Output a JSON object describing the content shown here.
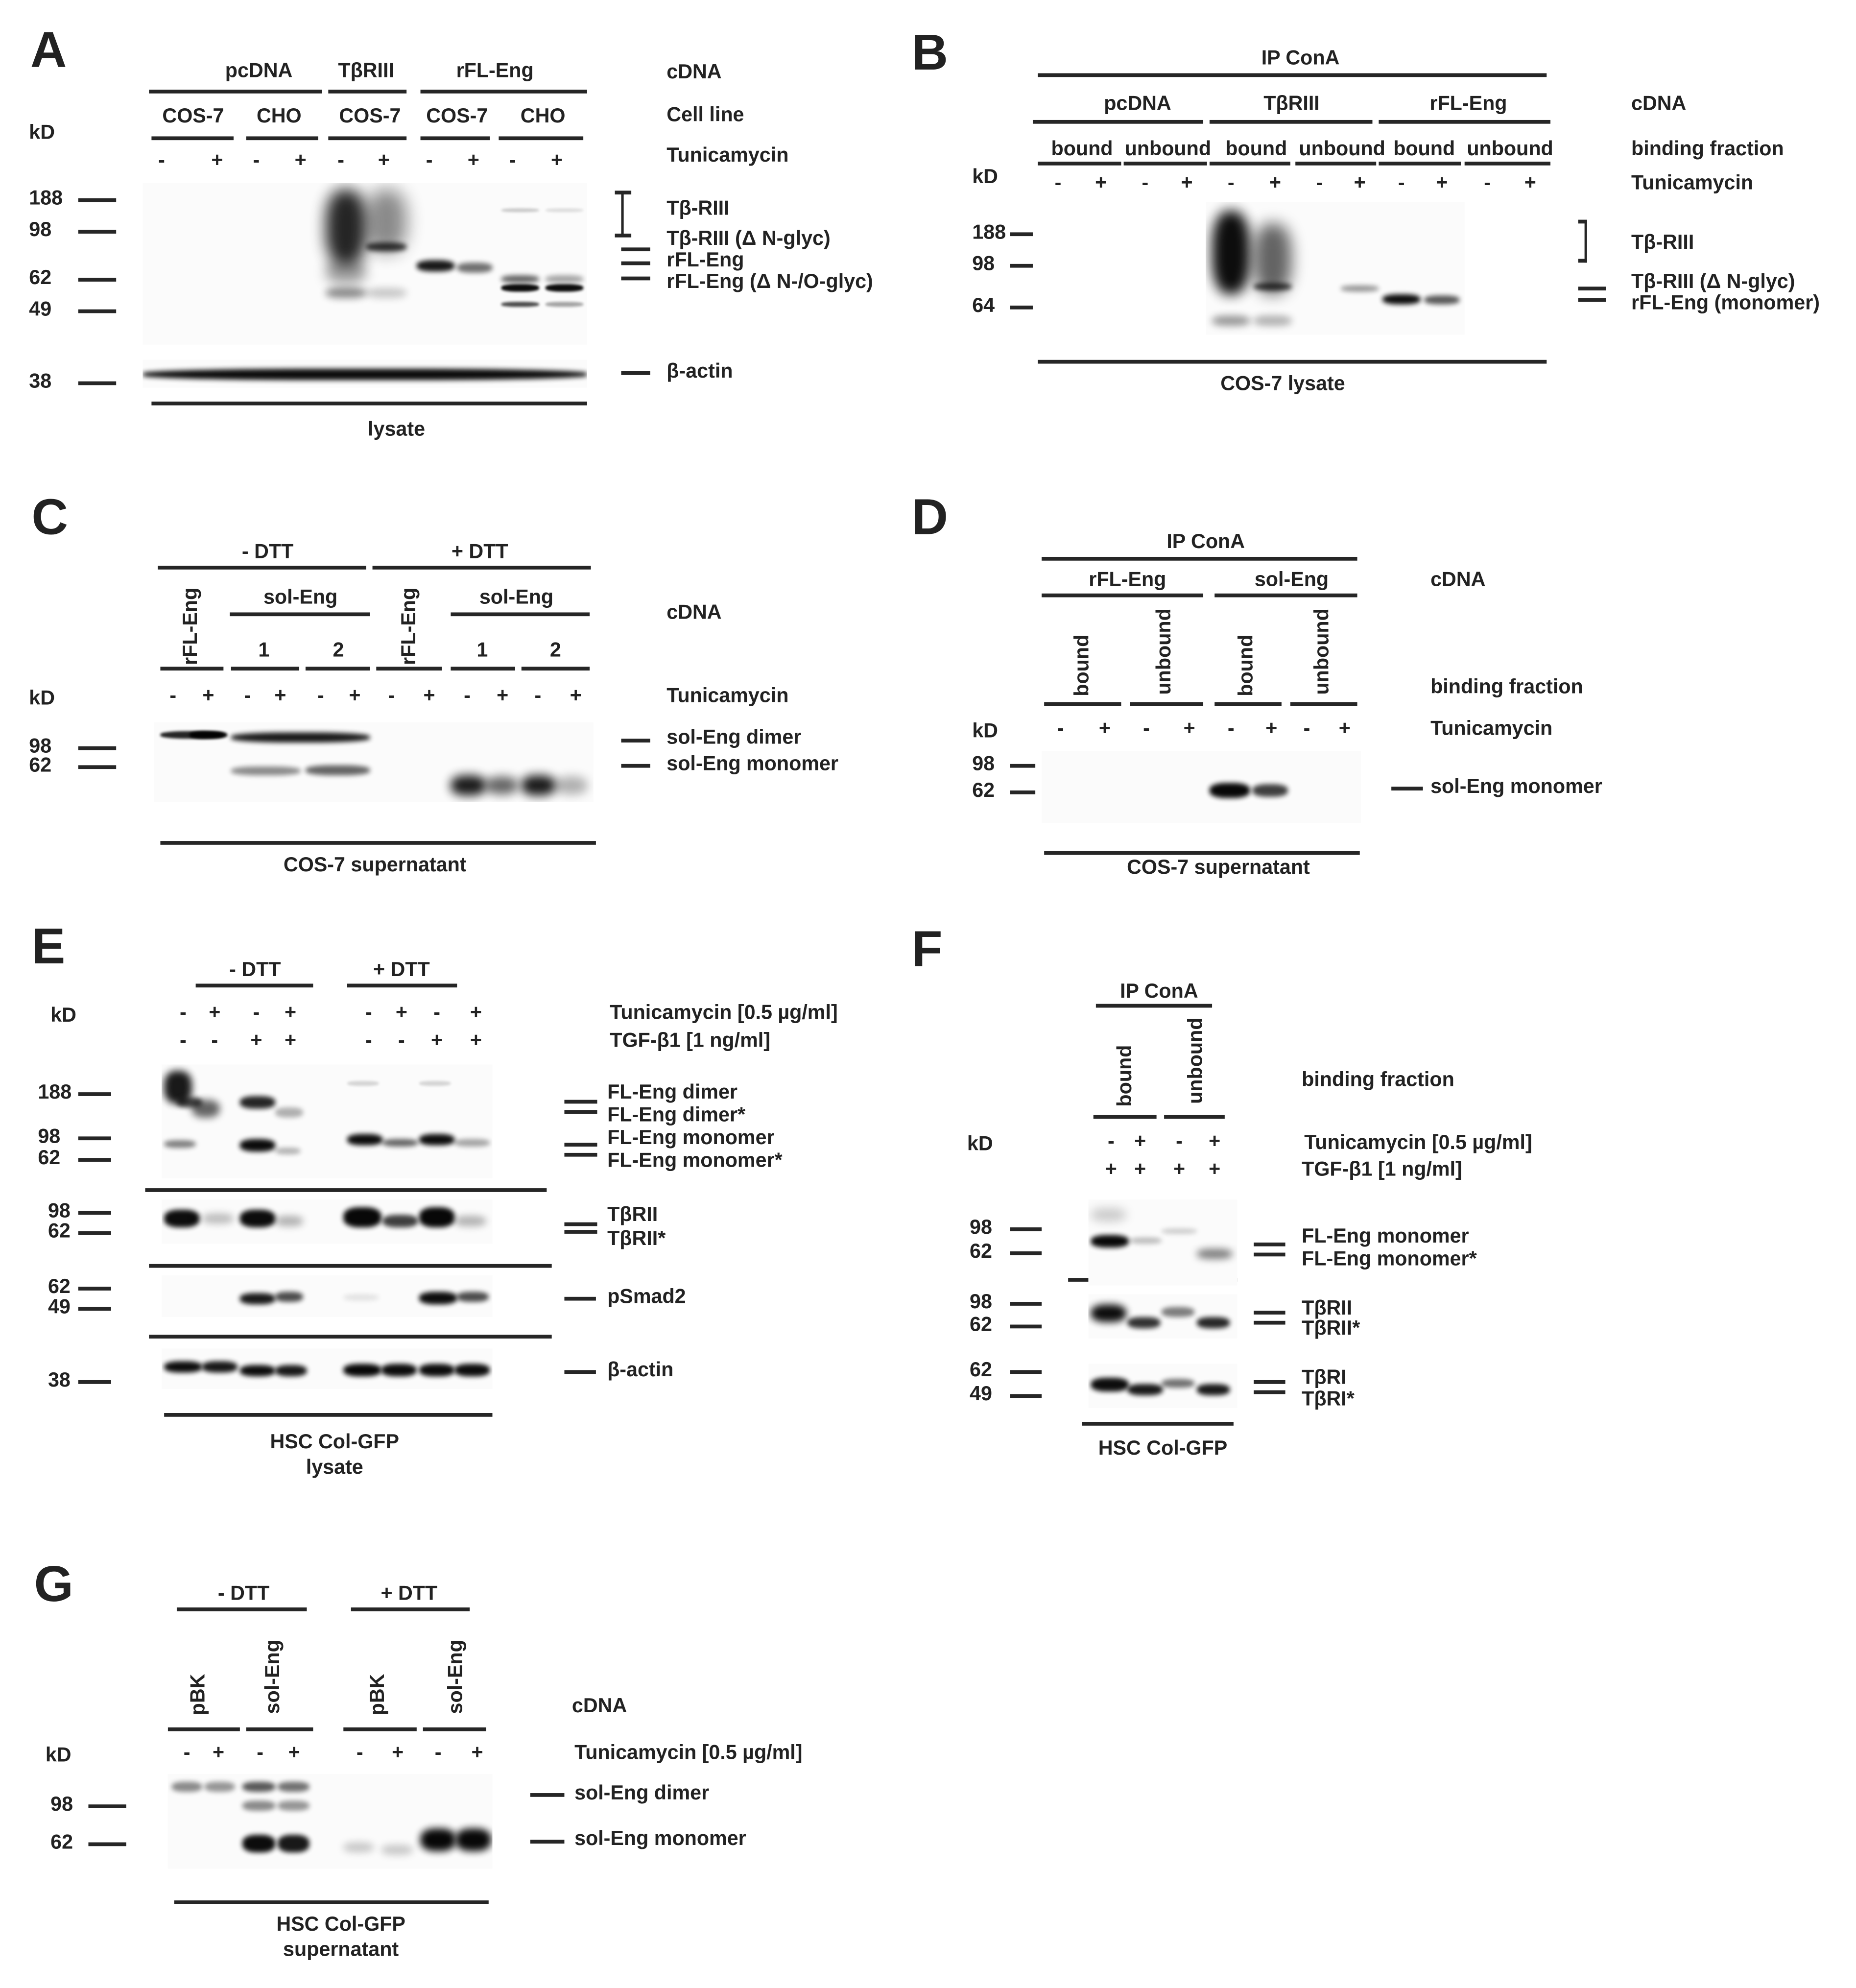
{
  "panels": {
    "A": {
      "letter": "A",
      "cdna": [
        "pcDNA",
        "TβRIII",
        "rFL-Eng"
      ],
      "cell_lines": [
        "COS-7",
        "CHO",
        "COS-7",
        "COS-7",
        "CHO"
      ],
      "tunicamycin": [
        "-",
        "+",
        "-",
        "+",
        "-",
        "+",
        "-",
        "+",
        "-",
        "+"
      ],
      "row_labels": {
        "cdna": "cDNA",
        "cell_line": "Cell line",
        "tunicamycin": "Tunicamycin"
      },
      "kd": "kD",
      "markers": [
        "188",
        "98",
        "62",
        "49",
        "38"
      ],
      "band_labels": [
        "Tβ-RIII",
        "Tβ-RIII (Δ N-glyc)",
        "rFL-Eng",
        "rFL-Eng (Δ N-/O-glyc)",
        "β-actin"
      ],
      "footer": "lysate"
    },
    "B": {
      "letter": "B",
      "ip": "IP ConA",
      "cdna": [
        "pcDNA",
        "TβRIII",
        "rFL-Eng"
      ],
      "fractions": [
        "bound",
        "unbound",
        "bound",
        "unbound",
        "bound",
        "unbound"
      ],
      "tunicamycin": [
        "-",
        "+",
        "-",
        "+",
        "-",
        "+",
        "-",
        "+",
        "-",
        "+",
        "-",
        "+"
      ],
      "row_labels": {
        "cdna": "cDNA",
        "binding": "binding fraction",
        "tunicamycin": "Tunicamycin"
      },
      "kd": "kD",
      "markers": [
        "188",
        "98",
        "64"
      ],
      "band_labels": [
        "Tβ-RIII",
        "Tβ-RIII (Δ N-glyc)",
        "rFL-Eng (monomer)"
      ],
      "footer": "COS-7 lysate"
    },
    "C": {
      "letter": "C",
      "dtt": [
        "- DTT",
        "+ DTT"
      ],
      "cdna": [
        "rFL-Eng",
        "sol-Eng",
        "rFL-Eng",
        "sol-Eng"
      ],
      "clones": [
        "1",
        "2",
        "1",
        "2"
      ],
      "tunicamycin": [
        "-",
        "+",
        "-",
        "+",
        "-",
        "+",
        "-",
        "+",
        "-",
        "+",
        "-",
        "+"
      ],
      "row_labels": {
        "cdna": "cDNA",
        "tunicamycin": "Tunicamycin"
      },
      "kd": "kD",
      "markers": [
        "98",
        "62"
      ],
      "band_labels": [
        "sol-Eng dimer",
        "sol-Eng monomer"
      ],
      "footer": "COS-7 supernatant"
    },
    "D": {
      "letter": "D",
      "ip": "IP ConA",
      "cdna": [
        "rFL-Eng",
        "sol-Eng"
      ],
      "fractions": [
        "bound",
        "unbound",
        "bound",
        "unbound"
      ],
      "tunicamycin": [
        "-",
        "+",
        "-",
        "+",
        "-",
        "+",
        "-",
        "+"
      ],
      "row_labels": {
        "cdna": "cDNA",
        "binding": "binding fraction",
        "tunicamycin": "Tunicamycin"
      },
      "kd": "kD",
      "markers": [
        "98",
        "62"
      ],
      "band_labels": [
        "sol-Eng monomer"
      ],
      "footer": "COS-7 supernatant"
    },
    "E": {
      "letter": "E",
      "dtt": [
        "- DTT",
        "+ DTT"
      ],
      "tunicamycin": [
        "-",
        "+",
        "-",
        "+",
        "-",
        "+",
        "-",
        "+"
      ],
      "tgf": [
        "-",
        "-",
        "+",
        "+",
        "-",
        "-",
        "+",
        "+"
      ],
      "row_labels": {
        "tunicamycin": "Tunicamycin [0.5 µg/ml]",
        "tgf": "TGF-β1 [1 ng/ml]"
      },
      "kd": "kD",
      "markers_eng": [
        "188",
        "98",
        "62"
      ],
      "markers_tbrii": [
        "98",
        "62"
      ],
      "markers_psmad": [
        "62",
        "49"
      ],
      "markers_actin": [
        "38"
      ],
      "band_labels": [
        "FL-Eng dimer",
        "FL-Eng dimer*",
        "FL-Eng monomer",
        "FL-Eng monomer*",
        "TβRII",
        "TβRII*",
        "pSmad2",
        "β-actin"
      ],
      "footer": [
        "HSC Col-GFP",
        "lysate"
      ]
    },
    "F": {
      "letter": "F",
      "ip": "IP ConA",
      "fractions": [
        "bound",
        "unbound"
      ],
      "tunicamycin": [
        "-",
        "+",
        "-",
        "+"
      ],
      "tgf": [
        "+",
        "+",
        "+",
        "+"
      ],
      "row_labels": {
        "binding": "binding fraction",
        "tunicamycin": "Tunicamycin [0.5 µg/ml]",
        "tgf": "TGF-β1 [1 ng/ml]"
      },
      "kd": "kD",
      "markers_eng": [
        "98",
        "62"
      ],
      "markers_tbrii": [
        "98",
        "62"
      ],
      "markers_tbri": [
        "62",
        "49"
      ],
      "band_labels": [
        "FL-Eng monomer",
        "FL-Eng monomer*",
        "TβRII",
        "TβRII*",
        "TβRI",
        "TβRI*"
      ],
      "footer": "HSC Col-GFP"
    },
    "G": {
      "letter": "G",
      "dtt": [
        "- DTT",
        "+ DTT"
      ],
      "cdna": [
        "pBK",
        "sol-Eng",
        "pBK",
        "sol-Eng"
      ],
      "tunicamycin": [
        "-",
        "+",
        "-",
        "+",
        "-",
        "+",
        "-",
        "+"
      ],
      "row_labels": {
        "cdna": "cDNA",
        "tunicamycin": "Tunicamycin [0.5 µg/ml]"
      },
      "kd": "kD",
      "markers": [
        "98",
        "62"
      ],
      "band_labels": [
        "sol-Eng dimer",
        "sol-Eng monomer"
      ],
      "footer": [
        "HSC Col-GFP",
        "supernatant"
      ]
    }
  }
}
